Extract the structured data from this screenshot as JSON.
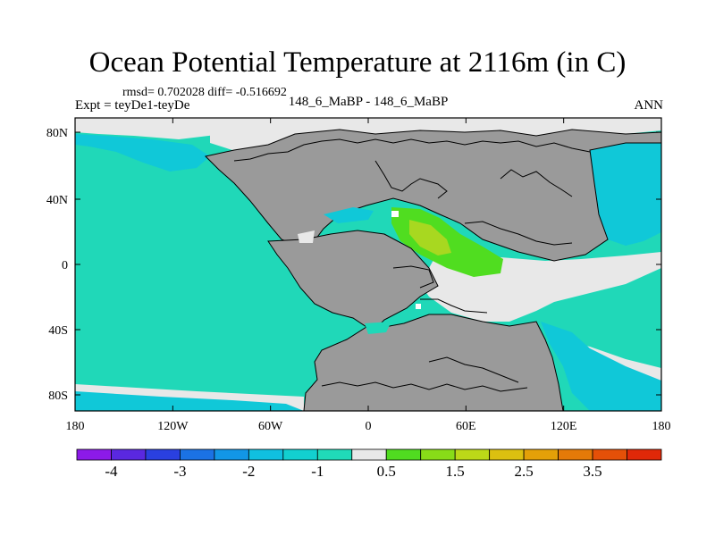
{
  "header": {
    "title": "Ocean Potential Temperature at 2116m (in C)",
    "stats": "rmsd= 0.702028 diff= -0.516692",
    "experiment": "Expt = teyDe1-teyDe",
    "case": "148_6_MaBP - 148_6_MaBP",
    "season": "ANN"
  },
  "map": {
    "lon_ticks": [
      "180",
      "120W",
      "60W",
      "0",
      "60E",
      "120E",
      "180"
    ],
    "lat_ticks": [
      "80N",
      "40N",
      "0",
      "40S",
      "80S"
    ],
    "colors": {
      "land": "#9a9a9a",
      "near_zero": "#e8e8e8",
      "minus_one": "#20d8b8",
      "minus_two": "#10c8d8",
      "half": "#50dd20",
      "one_five": "#a8d820"
    }
  },
  "colorbar": {
    "colors": [
      "#8c1ae8",
      "#5a28e0",
      "#2a40e0",
      "#1b72e4",
      "#1296e6",
      "#10c0e0",
      "#12d0d0",
      "#20dab8",
      "#e8e8e8",
      "#50dc20",
      "#88dc18",
      "#bcd818",
      "#dcc010",
      "#e4a008",
      "#e47a08",
      "#e45008",
      "#e02808"
    ],
    "labels": [
      {
        "text": "-4",
        "boundary": 1
      },
      {
        "text": "-3",
        "boundary": 3
      },
      {
        "text": "-2",
        "boundary": 5
      },
      {
        "text": "-1",
        "boundary": 7
      },
      {
        "text": "0.5",
        "boundary": 9
      },
      {
        "text": "1.5",
        "boundary": 11
      },
      {
        "text": "2.5",
        "boundary": 13
      },
      {
        "text": "3.5",
        "boundary": 15
      }
    ]
  }
}
